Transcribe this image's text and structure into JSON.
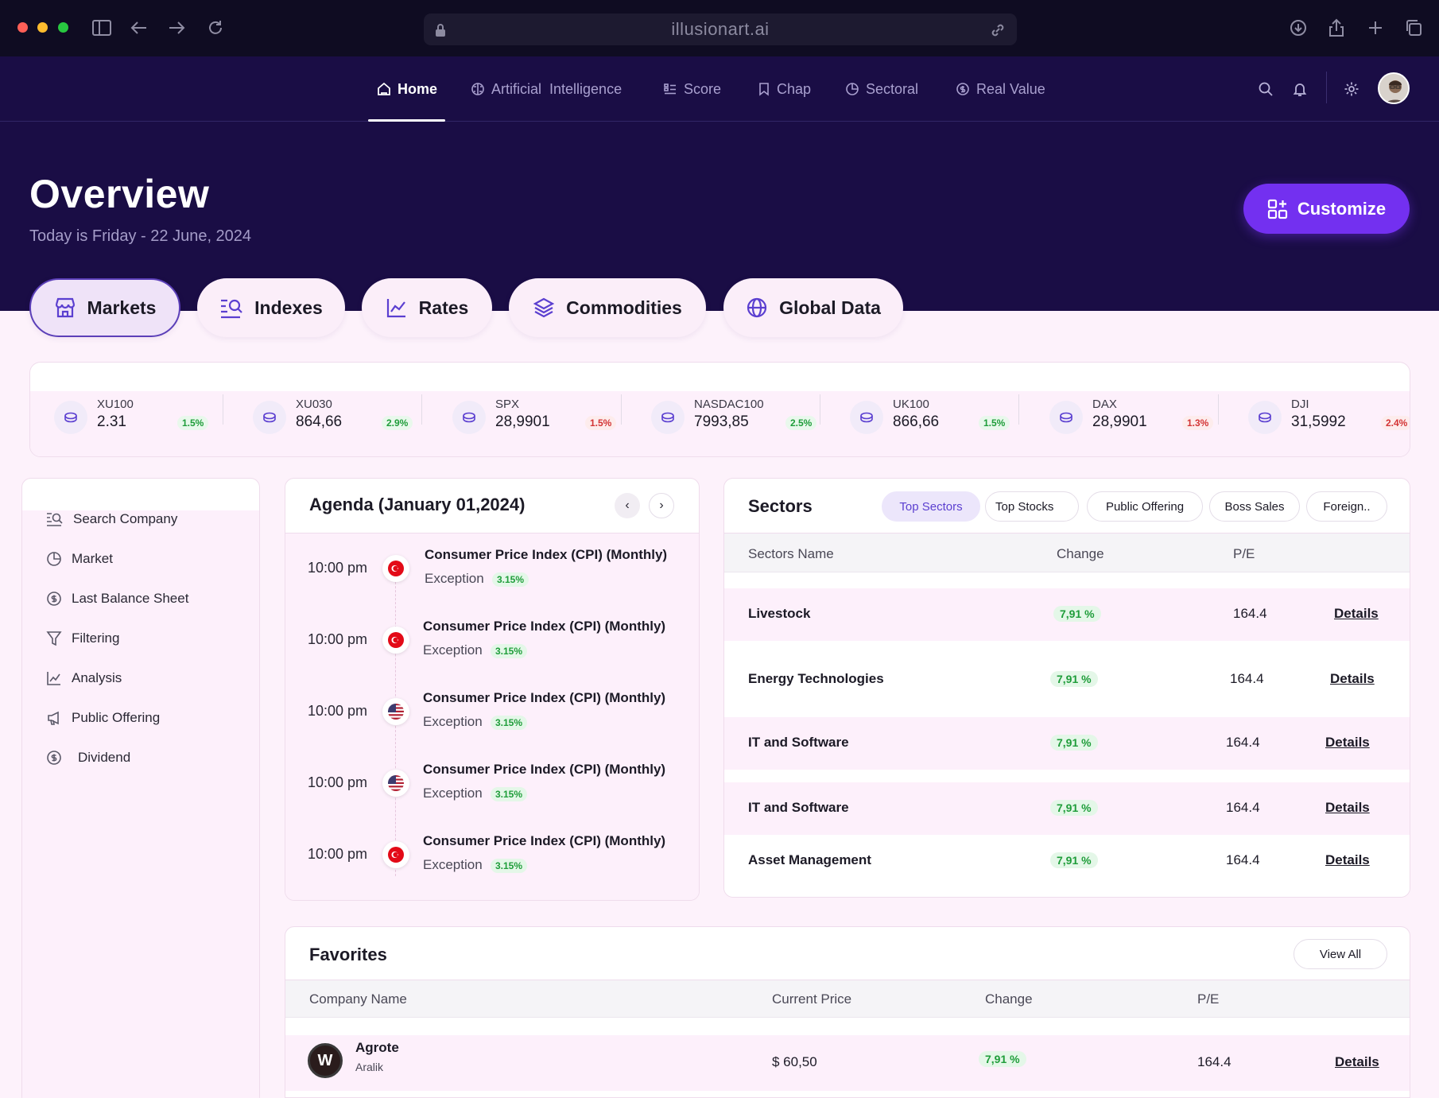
{
  "browser": {
    "url": "illusionart.ai"
  },
  "nav": {
    "items": [
      {
        "label": "Home",
        "icon": "home-icon",
        "active": true
      },
      {
        "label": "Artificial  Intelligence",
        "icon": "brain-icon"
      },
      {
        "label": "Score",
        "icon": "score-icon"
      },
      {
        "label": "Chap",
        "icon": "bookmark-icon"
      },
      {
        "label": "Sectoral",
        "icon": "pie-icon"
      },
      {
        "label": "Real Value",
        "icon": "coin-icon"
      }
    ]
  },
  "header": {
    "title": "Overview",
    "date_line": "Today is Friday - 22 June, 2024",
    "customize_label": "Customize"
  },
  "tabs": [
    {
      "label": "Markets",
      "icon": "store-icon",
      "active": true
    },
    {
      "label": "Indexes",
      "icon": "search-list-icon"
    },
    {
      "label": "Rates",
      "icon": "chart-line-icon"
    },
    {
      "label": "Commodities",
      "icon": "layers-icon"
    },
    {
      "label": "Global Data",
      "icon": "globe-icon"
    }
  ],
  "ticker": [
    {
      "symbol": "XU100",
      "value": "2.31",
      "change": "1.5%",
      "direction": "up"
    },
    {
      "symbol": "XU030",
      "value": "864,66",
      "change": "2.9%",
      "direction": "up"
    },
    {
      "symbol": "SPX",
      "value": "28,9901",
      "change": "1.5%",
      "direction": "down"
    },
    {
      "symbol": "NASDAC100",
      "value": "7993,85",
      "change": "2.5%",
      "direction": "up"
    },
    {
      "symbol": "UK100",
      "value": "866,66",
      "change": "1.5%",
      "direction": "up"
    },
    {
      "symbol": "DAX",
      "value": "28,9901",
      "change": "1.3%",
      "direction": "down"
    },
    {
      "symbol": "DJI",
      "value": "31,5992",
      "change": "2.4%",
      "direction": "down"
    }
  ],
  "sidebar": {
    "items": [
      {
        "label": "Search Company",
        "icon": "search-list-icon"
      },
      {
        "label": "Market",
        "icon": "pie-icon"
      },
      {
        "label": "Last Balance Sheet",
        "icon": "coin-icon"
      },
      {
        "label": "Filtering",
        "icon": "filter-icon"
      },
      {
        "label": "Analysis",
        "icon": "chart-line-icon"
      },
      {
        "label": "Public Offering",
        "icon": "megaphone-icon"
      },
      {
        "label": "Dividend",
        "icon": "coin-icon"
      }
    ]
  },
  "agenda": {
    "title": "Agenda (January 01,2024)",
    "prev": "‹",
    "next": "›",
    "items": [
      {
        "time": "10:00 pm",
        "flag": "turkey",
        "name": "Consumer Price Index (CPI) (Monthly)",
        "sub": "Exception",
        "change": "3.15%"
      },
      {
        "time": "10:00 pm",
        "flag": "turkey",
        "name": "Consumer Price Index (CPI) (Monthly)",
        "sub": "Exception",
        "change": "3.15%"
      },
      {
        "time": "10:00 pm",
        "flag": "usa",
        "name": "Consumer Price Index (CPI) (Monthly)",
        "sub": "Exception",
        "change": "3.15%"
      },
      {
        "time": "10:00 pm",
        "flag": "usa",
        "name": "Consumer Price Index (CPI) (Monthly)",
        "sub": "Exception",
        "change": "3.15%"
      },
      {
        "time": "10:00 pm",
        "flag": "turkey",
        "name": "Consumer Price Index (CPI) (Monthly)",
        "sub": "Exception",
        "change": "3.15%"
      }
    ]
  },
  "sectors": {
    "title": "Sectors",
    "filters": [
      "Top Sectors",
      "Top Stocks",
      "Public Offering",
      "Boss Sales",
      "Foreign.."
    ],
    "columns": [
      "Sectors Name",
      "Change",
      "P/E"
    ],
    "rows": [
      {
        "name": "Livestock",
        "change": "7,91 %",
        "pe": "164.4",
        "action": "Details"
      },
      {
        "name": "Energy Technologies",
        "change": "7,91 %",
        "pe": "164.4",
        "action": "Details"
      },
      {
        "name": "IT and Software",
        "change": "7,91 %",
        "pe": "164.4",
        "action": "Details"
      },
      {
        "name": "IT and Software",
        "change": "7,91 %",
        "pe": "164.4",
        "action": "Details"
      },
      {
        "name": "Asset Management",
        "change": "7,91 %",
        "pe": "164.4",
        "action": "Details"
      }
    ]
  },
  "favorites": {
    "title": "Favorites",
    "view_all": "View All",
    "columns": [
      "Company Name",
      "Current Price",
      "Change",
      "P/E"
    ],
    "rows": [
      {
        "logo": "W",
        "name": "Agrote",
        "sub": "Aralik",
        "price": "$ 60,50",
        "change": "7,91 %",
        "pe": "164.4",
        "action": "Details"
      }
    ]
  },
  "colors": {
    "hero": "#1a0d45",
    "accent": "#7330f0",
    "positive": "#1f9d3a",
    "negative": "#d33434",
    "panel": "#fdf0fb"
  }
}
